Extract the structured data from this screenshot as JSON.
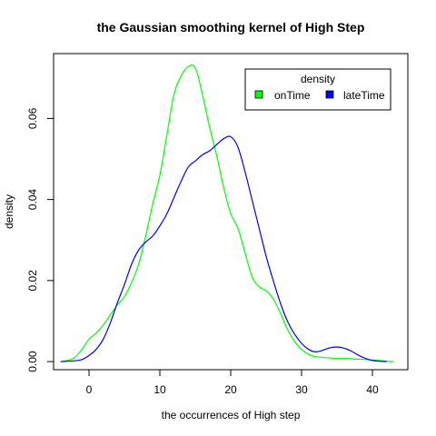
{
  "chart_data": {
    "type": "line",
    "title": "the Gaussian smoothing kernel of High Step",
    "xlabel": "the occurrences of High step",
    "ylabel": "density",
    "xlim": [
      -5,
      45
    ],
    "ylim": [
      -0.002,
      0.076
    ],
    "x_ticks": [
      0,
      10,
      20,
      30,
      40
    ],
    "y_ticks": [
      0.0,
      0.02,
      0.04,
      0.06
    ],
    "x_tick_labels": [
      "0",
      "10",
      "20",
      "30",
      "40"
    ],
    "y_tick_labels": [
      "0.00",
      "0.02",
      "0.04",
      "0.06"
    ],
    "grid": false,
    "legend": {
      "title": "density",
      "placement": "top-right",
      "entries": [
        "onTime",
        "lateTime"
      ]
    },
    "series": [
      {
        "name": "onTime",
        "color": "#00ff00",
        "points": [
          [
            -4,
            0
          ],
          [
            -3,
            0.0003
          ],
          [
            -2,
            0.001
          ],
          [
            -1,
            0.003
          ],
          [
            0,
            0.0055
          ],
          [
            1,
            0.007
          ],
          [
            2,
            0.009
          ],
          [
            3,
            0.0115
          ],
          [
            4,
            0.014
          ],
          [
            5,
            0.016
          ],
          [
            6,
            0.0195
          ],
          [
            7,
            0.024
          ],
          [
            8,
            0.031
          ],
          [
            9,
            0.039
          ],
          [
            10,
            0.046
          ],
          [
            11,
            0.056
          ],
          [
            12,
            0.066
          ],
          [
            13,
            0.0705
          ],
          [
            14,
            0.0728
          ],
          [
            15,
            0.0725
          ],
          [
            16,
            0.066
          ],
          [
            17,
            0.058
          ],
          [
            18,
            0.051
          ],
          [
            19,
            0.043
          ],
          [
            20,
            0.0365
          ],
          [
            21,
            0.033
          ],
          [
            22,
            0.027
          ],
          [
            23,
            0.021
          ],
          [
            24,
            0.0185
          ],
          [
            25,
            0.0175
          ],
          [
            26,
            0.0155
          ],
          [
            27,
            0.012
          ],
          [
            28,
            0.008
          ],
          [
            29,
            0.005
          ],
          [
            30,
            0.003
          ],
          [
            31,
            0.0018
          ],
          [
            32,
            0.0012
          ],
          [
            34,
            0.0009
          ],
          [
            36,
            0.0008
          ],
          [
            38,
            0.0006
          ],
          [
            40,
            0.0004
          ],
          [
            42,
            0.0001
          ],
          [
            43,
            0
          ]
        ]
      },
      {
        "name": "lateTime",
        "color": "#0000ff",
        "points": [
          [
            -4,
            0
          ],
          [
            -2,
            0.0002
          ],
          [
            -1,
            0.0005
          ],
          [
            0,
            0.0015
          ],
          [
            1,
            0.003
          ],
          [
            2,
            0.0055
          ],
          [
            3,
            0.0095
          ],
          [
            4,
            0.0145
          ],
          [
            5,
            0.019
          ],
          [
            6,
            0.024
          ],
          [
            7,
            0.0275
          ],
          [
            8,
            0.0295
          ],
          [
            9,
            0.031
          ],
          [
            10,
            0.0335
          ],
          [
            11,
            0.0365
          ],
          [
            12,
            0.0405
          ],
          [
            13,
            0.0445
          ],
          [
            14,
            0.048
          ],
          [
            15,
            0.0495
          ],
          [
            16,
            0.051
          ],
          [
            17,
            0.052
          ],
          [
            18,
            0.0535
          ],
          [
            19,
            0.055
          ],
          [
            20,
            0.0555
          ],
          [
            21,
            0.053
          ],
          [
            22,
            0.047
          ],
          [
            23,
            0.04
          ],
          [
            24,
            0.033
          ],
          [
            25,
            0.026
          ],
          [
            26,
            0.02
          ],
          [
            27,
            0.0145
          ],
          [
            28,
            0.01
          ],
          [
            29,
            0.0068
          ],
          [
            30,
            0.0045
          ],
          [
            31,
            0.003
          ],
          [
            32,
            0.0024
          ],
          [
            33,
            0.0028
          ],
          [
            34,
            0.0034
          ],
          [
            35,
            0.0036
          ],
          [
            36,
            0.0033
          ],
          [
            37,
            0.0026
          ],
          [
            38,
            0.0016
          ],
          [
            39,
            0.0008
          ],
          [
            40,
            0.0003
          ],
          [
            41,
            0.0001
          ],
          [
            42,
            0
          ]
        ]
      }
    ]
  }
}
